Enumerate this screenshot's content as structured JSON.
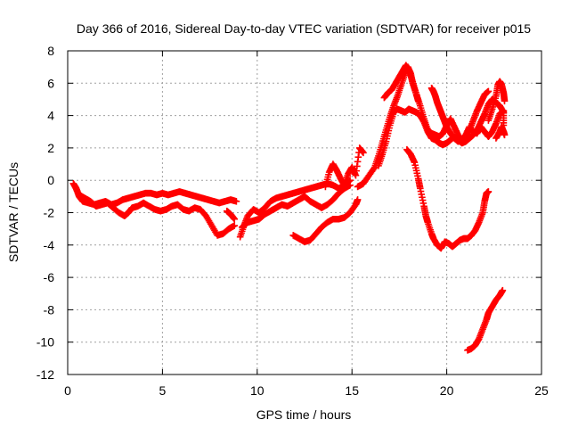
{
  "chart_data": {
    "type": "scatter",
    "title": "Day 366 of 2016, Sidereal Day-to-day VTEC variation (SDTVAR) for receiver p015",
    "xlabel": "GPS time / hours",
    "ylabel": "SDTVAR / TECUs",
    "xlim": [
      0,
      25
    ],
    "ylim": [
      -12,
      8
    ],
    "xticks": [
      0,
      5,
      10,
      15,
      20,
      25
    ],
    "yticks": [
      -12,
      -10,
      -8,
      -6,
      -4,
      -2,
      0,
      2,
      4,
      6,
      8
    ],
    "grid": true,
    "legend": "none",
    "marker": "plus",
    "color": "#ff0000",
    "series": [
      {
        "points": [
          [
            0.3,
            -0.2
          ],
          [
            0.45,
            -0.5
          ],
          [
            0.6,
            -1.0
          ],
          [
            0.8,
            -1.3
          ],
          [
            1.1,
            -1.4
          ],
          [
            1.4,
            -1.5
          ],
          [
            1.7,
            -1.4
          ],
          [
            2.0,
            -1.3
          ],
          [
            2.3,
            -1.5
          ],
          [
            2.6,
            -1.4
          ],
          [
            2.9,
            -1.2
          ],
          [
            3.2,
            -1.1
          ],
          [
            3.5,
            -1.0
          ],
          [
            3.8,
            -0.9
          ],
          [
            4.1,
            -0.8
          ],
          [
            4.4,
            -0.8
          ],
          [
            4.7,
            -0.9
          ],
          [
            5.0,
            -0.8
          ],
          [
            5.3,
            -0.9
          ],
          [
            5.6,
            -0.8
          ],
          [
            5.9,
            -0.7
          ],
          [
            6.2,
            -0.8
          ],
          [
            6.5,
            -0.9
          ],
          [
            6.8,
            -1.0
          ],
          [
            7.1,
            -1.1
          ],
          [
            7.4,
            -1.2
          ],
          [
            7.7,
            -1.3
          ],
          [
            8.0,
            -1.4
          ],
          [
            8.3,
            -1.3
          ],
          [
            8.6,
            -1.2
          ],
          [
            8.9,
            -1.3
          ]
        ]
      },
      {
        "points": [
          [
            0.4,
            -0.4
          ],
          [
            0.6,
            -0.9
          ],
          [
            0.9,
            -1.1
          ],
          [
            1.2,
            -1.3
          ],
          [
            1.5,
            -1.6
          ],
          [
            1.8,
            -1.5
          ],
          [
            2.1,
            -1.4
          ],
          [
            2.4,
            -1.7
          ],
          [
            2.7,
            -2.0
          ],
          [
            3.0,
            -2.2
          ],
          [
            3.2,
            -2.0
          ],
          [
            3.4,
            -1.7
          ],
          [
            3.7,
            -1.6
          ],
          [
            4.0,
            -1.4
          ],
          [
            4.3,
            -1.6
          ],
          [
            4.6,
            -1.8
          ],
          [
            4.9,
            -1.9
          ],
          [
            5.2,
            -1.8
          ],
          [
            5.5,
            -1.6
          ],
          [
            5.8,
            -1.5
          ],
          [
            6.1,
            -1.8
          ],
          [
            6.4,
            -1.9
          ],
          [
            6.7,
            -1.7
          ],
          [
            7.0,
            -1.8
          ],
          [
            7.3,
            -2.2
          ],
          [
            7.6,
            -2.8
          ],
          [
            7.9,
            -3.4
          ],
          [
            8.2,
            -3.3
          ],
          [
            8.5,
            -3.0
          ],
          [
            8.8,
            -2.8
          ]
        ]
      },
      {
        "points": [
          [
            8.4,
            -1.9
          ],
          [
            8.6,
            -2.1
          ],
          [
            8.8,
            -2.4
          ]
        ]
      },
      {
        "points": [
          [
            9.1,
            -3.5
          ],
          [
            9.3,
            -2.8
          ],
          [
            9.5,
            -2.2
          ],
          [
            9.8,
            -1.8
          ],
          [
            10.1,
            -2.0
          ],
          [
            10.4,
            -1.7
          ],
          [
            10.7,
            -1.3
          ],
          [
            11.0,
            -1.1
          ],
          [
            11.3,
            -1.0
          ],
          [
            11.6,
            -0.9
          ],
          [
            11.9,
            -0.8
          ],
          [
            12.2,
            -0.7
          ],
          [
            12.5,
            -0.6
          ],
          [
            12.8,
            -0.5
          ],
          [
            13.1,
            -0.4
          ],
          [
            13.4,
            -0.3
          ],
          [
            13.7,
            -0.2
          ],
          [
            14.0,
            -0.3
          ],
          [
            14.3,
            -0.5
          ],
          [
            14.6,
            -0.3
          ],
          [
            14.9,
            0.0
          ]
        ]
      },
      {
        "points": [
          [
            9.2,
            -2.9
          ],
          [
            9.5,
            -2.6
          ],
          [
            9.8,
            -2.5
          ],
          [
            10.1,
            -2.4
          ],
          [
            10.4,
            -2.1
          ],
          [
            10.7,
            -1.9
          ],
          [
            11.0,
            -1.7
          ],
          [
            11.3,
            -1.5
          ],
          [
            11.6,
            -1.6
          ],
          [
            11.9,
            -1.4
          ],
          [
            12.2,
            -1.2
          ],
          [
            12.5,
            -1.0
          ],
          [
            12.8,
            -1.3
          ],
          [
            13.1,
            -1.5
          ],
          [
            13.4,
            -1.7
          ],
          [
            13.7,
            -1.5
          ],
          [
            14.0,
            -1.2
          ],
          [
            14.3,
            -0.8
          ],
          [
            14.6,
            -0.5
          ],
          [
            14.9,
            -0.3
          ]
        ]
      },
      {
        "points": [
          [
            11.9,
            -3.4
          ],
          [
            12.2,
            -3.6
          ],
          [
            12.5,
            -3.8
          ],
          [
            12.8,
            -3.7
          ],
          [
            13.1,
            -3.3
          ],
          [
            13.4,
            -2.9
          ],
          [
            13.7,
            -2.6
          ],
          [
            14.0,
            -2.4
          ],
          [
            14.3,
            -2.4
          ],
          [
            14.6,
            -2.3
          ],
          [
            14.9,
            -2.0
          ],
          [
            15.2,
            -1.5
          ],
          [
            15.3,
            -1.2
          ]
        ]
      },
      {
        "points": [
          [
            13.6,
            -0.4
          ],
          [
            13.8,
            0.5
          ],
          [
            14.0,
            1.0
          ],
          [
            14.2,
            0.6
          ],
          [
            14.4,
            0.1
          ],
          [
            14.6,
            -0.3
          ],
          [
            14.8,
            0.4
          ],
          [
            15.0,
            0.8
          ],
          [
            15.2,
            0.3
          ],
          [
            15.4,
            2.0
          ],
          [
            15.6,
            1.7
          ]
        ]
      },
      {
        "points": [
          [
            15.3,
            -0.4
          ],
          [
            15.6,
            -0.2
          ],
          [
            15.9,
            0.3
          ],
          [
            16.2,
            0.8
          ],
          [
            16.4,
            1.5
          ],
          [
            16.6,
            2.3
          ],
          [
            16.8,
            3.1
          ],
          [
            17.0,
            3.9
          ],
          [
            17.2,
            4.6
          ],
          [
            17.4,
            5.2
          ],
          [
            17.6,
            5.9
          ],
          [
            17.8,
            6.6
          ],
          [
            17.95,
            7.0
          ],
          [
            18.1,
            6.6
          ],
          [
            18.2,
            6.0
          ],
          [
            18.4,
            5.3
          ],
          [
            18.6,
            4.6
          ],
          [
            18.8,
            3.8
          ],
          [
            19.0,
            3.1
          ],
          [
            19.2,
            2.9
          ],
          [
            19.4,
            2.8
          ],
          [
            19.6,
            2.7
          ],
          [
            19.8,
            2.9
          ],
          [
            20.0,
            3.4
          ],
          [
            20.2,
            3.8
          ],
          [
            20.4,
            3.3
          ],
          [
            20.6,
            2.8
          ],
          [
            20.8,
            2.5
          ],
          [
            21.0,
            2.8
          ],
          [
            21.2,
            3.3
          ],
          [
            21.4,
            3.0
          ],
          [
            21.6,
            2.9
          ],
          [
            21.8,
            3.3
          ],
          [
            22.0,
            3.0
          ],
          [
            22.2,
            2.7
          ],
          [
            22.4,
            3.0
          ],
          [
            22.6,
            3.5
          ],
          [
            22.8,
            4.1
          ],
          [
            23.0,
            4.3
          ],
          [
            23.0,
            3.4
          ]
        ]
      },
      {
        "points": [
          [
            16.4,
            0.9
          ],
          [
            16.6,
            1.6
          ],
          [
            16.8,
            2.4
          ],
          [
            17.0,
            3.4
          ],
          [
            17.2,
            4.2
          ],
          [
            17.4,
            4.4
          ],
          [
            17.6,
            4.3
          ],
          [
            17.8,
            4.2
          ],
          [
            18.0,
            4.4
          ],
          [
            18.2,
            4.3
          ],
          [
            18.4,
            4.2
          ],
          [
            18.6,
            4.0
          ],
          [
            18.8,
            3.6
          ],
          [
            19.0,
            3.0
          ],
          [
            19.2,
            2.6
          ],
          [
            19.4,
            2.5
          ],
          [
            19.6,
            2.3
          ],
          [
            19.8,
            2.2
          ],
          [
            20.0,
            2.3
          ],
          [
            20.2,
            2.5
          ],
          [
            20.4,
            2.7
          ],
          [
            20.6,
            2.5
          ],
          [
            20.8,
            2.3
          ],
          [
            21.0,
            2.4
          ],
          [
            21.2,
            2.6
          ],
          [
            21.4,
            2.8
          ],
          [
            21.6,
            3.1
          ],
          [
            21.8,
            3.6
          ],
          [
            22.0,
            4.1
          ],
          [
            22.2,
            4.7
          ],
          [
            22.4,
            5.0
          ],
          [
            22.6,
            4.8
          ],
          [
            22.8,
            4.6
          ],
          [
            23.0,
            4.2
          ]
        ]
      },
      {
        "points": [
          [
            16.7,
            5.1
          ],
          [
            16.9,
            5.4
          ],
          [
            17.1,
            5.6
          ],
          [
            17.3,
            6.0
          ],
          [
            17.5,
            6.4
          ],
          [
            17.7,
            6.8
          ],
          [
            17.85,
            7.1
          ],
          [
            18.0,
            6.8
          ],
          [
            18.2,
            6.1
          ],
          [
            18.4,
            5.3
          ],
          [
            18.5,
            4.9
          ]
        ]
      },
      {
        "points": [
          [
            19.2,
            5.7
          ],
          [
            19.3,
            5.5
          ],
          [
            19.4,
            5.2
          ],
          [
            19.5,
            4.8
          ],
          [
            19.6,
            4.5
          ],
          [
            19.7,
            4.2
          ],
          [
            19.8,
            3.9
          ],
          [
            19.9,
            3.6
          ],
          [
            20.0,
            3.3
          ],
          [
            20.2,
            2.9
          ],
          [
            20.4,
            2.6
          ],
          [
            20.6,
            2.4
          ],
          [
            20.8,
            2.5
          ],
          [
            21.0,
            2.7
          ],
          [
            21.2,
            3.1
          ],
          [
            21.4,
            3.7
          ],
          [
            21.6,
            4.3
          ],
          [
            21.8,
            4.8
          ],
          [
            22.0,
            5.3
          ],
          [
            22.2,
            5.5
          ]
        ]
      },
      {
        "points": [
          [
            22.2,
            3.7
          ],
          [
            22.4,
            4.4
          ],
          [
            22.6,
            5.2
          ],
          [
            22.7,
            5.9
          ],
          [
            22.8,
            6.1
          ],
          [
            22.9,
            5.9
          ],
          [
            23.0,
            5.4
          ],
          [
            23.05,
            4.9
          ]
        ]
      },
      {
        "points": [
          [
            22.6,
            2.6
          ],
          [
            22.8,
            3.0
          ],
          [
            22.9,
            3.3
          ],
          [
            23.0,
            3.0
          ],
          [
            23.05,
            2.8
          ]
        ]
      },
      {
        "points": [
          [
            17.9,
            1.9
          ],
          [
            18.1,
            1.6
          ],
          [
            18.3,
            1.1
          ],
          [
            18.5,
            0.1
          ],
          [
            18.6,
            -0.5
          ],
          [
            18.8,
            -1.6
          ],
          [
            18.9,
            -2.2
          ],
          [
            19.0,
            -2.6
          ],
          [
            19.2,
            -3.3
          ],
          [
            19.3,
            -3.6
          ],
          [
            19.5,
            -4.0
          ],
          [
            19.7,
            -4.2
          ],
          [
            19.9,
            -3.8
          ],
          [
            20.1,
            -3.9
          ],
          [
            20.3,
            -4.1
          ],
          [
            20.5,
            -3.9
          ],
          [
            20.7,
            -3.7
          ],
          [
            20.9,
            -3.6
          ],
          [
            21.1,
            -3.6
          ],
          [
            21.3,
            -3.4
          ],
          [
            21.5,
            -3.1
          ],
          [
            21.7,
            -2.6
          ],
          [
            21.9,
            -2.0
          ],
          [
            22.0,
            -1.3
          ],
          [
            22.1,
            -0.8
          ],
          [
            22.2,
            -0.7
          ]
        ]
      },
      {
        "points": [
          [
            21.1,
            -10.5
          ],
          [
            21.3,
            -10.4
          ],
          [
            21.5,
            -10.2
          ],
          [
            21.7,
            -9.8
          ],
          [
            21.9,
            -9.2
          ],
          [
            22.1,
            -8.6
          ],
          [
            22.2,
            -8.2
          ],
          [
            22.4,
            -7.8
          ],
          [
            22.6,
            -7.4
          ],
          [
            22.8,
            -7.1
          ],
          [
            22.95,
            -6.8
          ]
        ]
      }
    ]
  }
}
